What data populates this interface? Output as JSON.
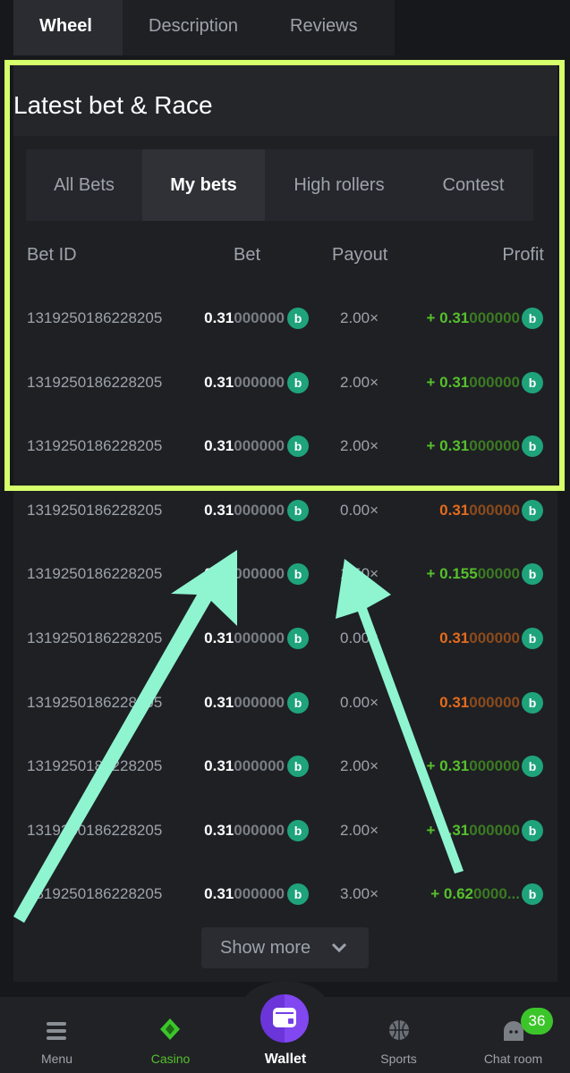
{
  "top_tabs": [
    "Wheel",
    "Description",
    "Reviews"
  ],
  "section_title": "Latest bet & Race",
  "sub_tabs": [
    "All Bets",
    "My bets",
    "High rollers",
    "Contest"
  ],
  "active_sub_tab": "My bets",
  "columns": {
    "bet_id": "Bet ID",
    "bet": "Bet",
    "payout": "Payout",
    "profit": "Profit"
  },
  "rows": [
    {
      "id": "1319250186228205",
      "bet_main": "0.31",
      "bet_tail": "000000",
      "payout": "2.00×",
      "profit_prefix": "+ ",
      "profit_main": "0.31",
      "profit_tail": "000000",
      "result": "win"
    },
    {
      "id": "1319250186228205",
      "bet_main": "0.31",
      "bet_tail": "000000",
      "payout": "2.00×",
      "profit_prefix": "+ ",
      "profit_main": "0.31",
      "profit_tail": "000000",
      "result": "win"
    },
    {
      "id": "1319250186228205",
      "bet_main": "0.31",
      "bet_tail": "000000",
      "payout": "2.00×",
      "profit_prefix": "+ ",
      "profit_main": "0.31",
      "profit_tail": "000000",
      "result": "win"
    },
    {
      "id": "1319250186228205",
      "bet_main": "0.31",
      "bet_tail": "000000",
      "payout": "0.00×",
      "profit_prefix": "",
      "profit_main": "0.31",
      "profit_tail": "000000",
      "result": "loss"
    },
    {
      "id": "1319250186228205",
      "bet_main": "0.31",
      "bet_tail": "000000",
      "payout": "1.50×",
      "profit_prefix": "+ ",
      "profit_main": "0.155",
      "profit_tail": "00000",
      "result": "win"
    },
    {
      "id": "1319250186228205",
      "bet_main": "0.31",
      "bet_tail": "000000",
      "payout": "0.00×",
      "profit_prefix": "",
      "profit_main": "0.31",
      "profit_tail": "000000",
      "result": "loss"
    },
    {
      "id": "1319250186228205",
      "bet_main": "0.31",
      "bet_tail": "000000",
      "payout": "0.00×",
      "profit_prefix": "",
      "profit_main": "0.31",
      "profit_tail": "000000",
      "result": "loss"
    },
    {
      "id": "1319250186228205",
      "bet_main": "0.31",
      "bet_tail": "000000",
      "payout": "2.00×",
      "profit_prefix": "+ ",
      "profit_main": "0.31",
      "profit_tail": "000000",
      "result": "win"
    },
    {
      "id": "1319250186228205",
      "bet_main": "0.31",
      "bet_tail": "000000",
      "payout": "2.00×",
      "profit_prefix": "+ ",
      "profit_main": "0.31",
      "profit_tail": "000000",
      "result": "win"
    },
    {
      "id": "1319250186228205",
      "bet_main": "0.31",
      "bet_tail": "000000",
      "payout": "3.00×",
      "profit_prefix": "+ ",
      "profit_main": "0.62",
      "profit_tail": "0000...",
      "result": "win"
    }
  ],
  "coin_icon": "bc-coin-icon",
  "show_more": "Show more",
  "bottom_nav": {
    "menu": "Menu",
    "casino": "Casino",
    "wallet": "Wallet",
    "sports": "Sports",
    "chat": "Chat room",
    "chat_badge": "36"
  },
  "colors": {
    "win": "#56c02b",
    "loss": "#e46b1b",
    "coin": "#1fa37a",
    "highlight_box": "#d6ff6b",
    "arrow": "#8ef5d0",
    "wallet": "#7440e6"
  }
}
